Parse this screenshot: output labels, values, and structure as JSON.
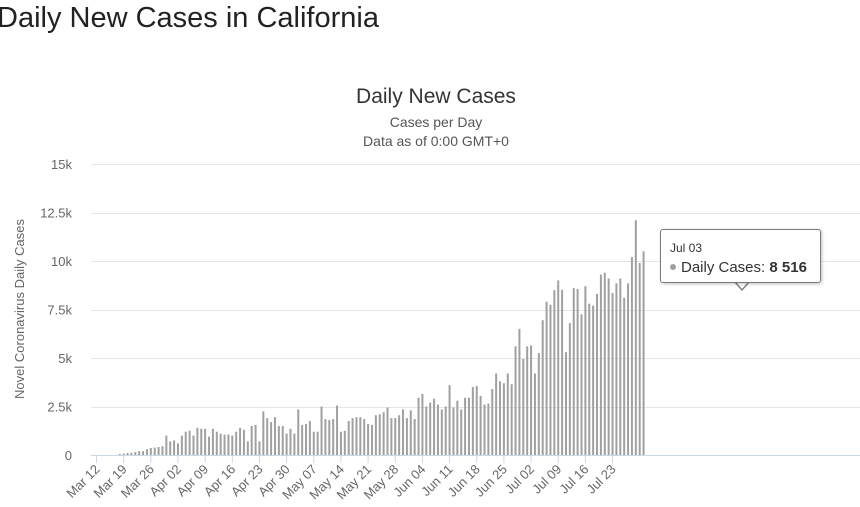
{
  "page": {
    "heading": "Daily New Cases in California"
  },
  "chart_data": {
    "type": "bar",
    "title": "Daily New Cases",
    "subtitle_lines": [
      "Cases per Day",
      "Data as of 0:00 GMT+0"
    ],
    "ylabel": "Novel Coronavirus Daily Cases",
    "ylim": [
      0,
      15000
    ],
    "y_ticks": [
      0,
      2500,
      5000,
      7500,
      10000,
      12500,
      15000
    ],
    "y_tick_labels": [
      "0",
      "2.5k",
      "5k",
      "7.5k",
      "10k",
      "12.5k",
      "15k"
    ],
    "x_tick_labels": [
      "Mar 12",
      "Mar 19",
      "Mar 26",
      "Apr 02",
      "Apr 09",
      "Apr 16",
      "Apr 23",
      "Apr 30",
      "May 07",
      "May 14",
      "May 21",
      "May 28",
      "Jun 04",
      "Jun 11",
      "Jun 18",
      "Jun 25",
      "Jul 02",
      "Jul 09",
      "Jul 16",
      "Jul 23"
    ],
    "series": [
      {
        "name": "Daily Cases",
        "color": "#a0a0a0",
        "values": [
          0,
          0,
          0,
          0,
          0,
          0,
          50,
          70,
          100,
          110,
          150,
          200,
          200,
          300,
          360,
          380,
          410,
          450,
          1000,
          700,
          750,
          600,
          1000,
          1200,
          1250,
          1000,
          1400,
          1350,
          1350,
          950,
          1350,
          1200,
          1100,
          1050,
          1050,
          1000,
          1200,
          1400,
          1300,
          700,
          1500,
          1550,
          700,
          2250,
          1900,
          1700,
          1950,
          1500,
          1500,
          1100,
          1350,
          1100,
          2350,
          1550,
          1600,
          1750,
          1200,
          1200,
          2500,
          1850,
          1800,
          1850,
          2550,
          1200,
          1250,
          1750,
          1900,
          1950,
          1950,
          1850,
          1600,
          1550,
          2050,
          2100,
          2200,
          2450,
          1900,
          1900,
          2050,
          2350,
          1900,
          2300,
          1850,
          2950,
          3150,
          2500,
          2700,
          2900,
          2600,
          2350,
          2500,
          3600,
          2450,
          2800,
          2350,
          2950,
          2950,
          3500,
          3550,
          3050,
          2600,
          2650,
          3400,
          4200,
          3800,
          3700,
          4200,
          3650,
          5600,
          6500,
          4950,
          5600,
          5650,
          4200,
          5250,
          6950,
          7900,
          7750,
          8500,
          9000,
          8516,
          5300,
          6800,
          8600,
          8550,
          7250,
          8700,
          7800,
          7700,
          8300,
          9300,
          9400,
          9100,
          8350,
          8850,
          9100,
          8100,
          8850,
          10200,
          12100,
          9900,
          10500
        ]
      }
    ],
    "highlight": {
      "label": "Jul 03",
      "series_label": "Daily Cases:",
      "value_text": "8 516"
    },
    "grid": "horizontal",
    "legend": "none"
  }
}
